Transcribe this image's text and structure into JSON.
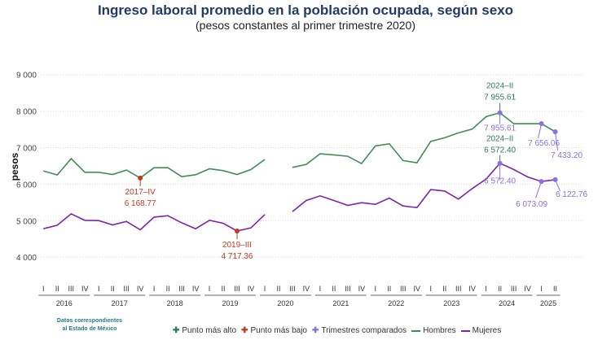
{
  "chart_data": {
    "type": "line",
    "title": "Ingreso laboral promedio en la población ocupada, según sexo",
    "subtitle": "(pesos constantes al primer trimestre 2020)",
    "ylabel": "pesos",
    "xlabel": "",
    "ylim": [
      3500,
      9000
    ],
    "yticks": [
      4000,
      5000,
      6000,
      7000,
      8000,
      9000
    ],
    "ytick_labels": [
      "4 000",
      "5 000",
      "6 000",
      "7 000",
      "8 000",
      "9 000"
    ],
    "grid": "horizontal dotted",
    "years": [
      {
        "label": "2016",
        "quarters": [
          "I",
          "II",
          "III",
          "IV"
        ]
      },
      {
        "label": "2017",
        "quarters": [
          "I",
          "II",
          "III",
          "IV"
        ]
      },
      {
        "label": "2018",
        "quarters": [
          "I",
          "II",
          "III",
          "IV"
        ]
      },
      {
        "label": "2019",
        "quarters": [
          "I",
          "II",
          "III",
          "IV"
        ]
      },
      {
        "label": "2020",
        "quarters": [
          "I",
          "II",
          "III",
          "IV"
        ]
      },
      {
        "label": "2021",
        "quarters": [
          "I",
          "II",
          "III",
          "IV"
        ]
      },
      {
        "label": "2022",
        "quarters": [
          "I",
          "II",
          "III",
          "IV"
        ]
      },
      {
        "label": "2023",
        "quarters": [
          "I",
          "II",
          "III",
          "IV"
        ]
      },
      {
        "label": "2024",
        "quarters": [
          "I",
          "II",
          "III",
          "IV"
        ]
      },
      {
        "label": "2025",
        "quarters": [
          "I",
          "II"
        ]
      }
    ],
    "series": [
      {
        "name": "Hombres",
        "color": "#3f8f55",
        "values": [
          6362,
          6251,
          6697,
          6325,
          6325,
          6266,
          6385,
          6168.77,
          6451,
          6451,
          6206,
          6258,
          6422,
          6370,
          6266,
          6400,
          6674,
          null,
          6459,
          6541,
          6830,
          6801,
          6764,
          6563,
          7046,
          7105,
          6645,
          6585,
          7172,
          7269,
          7403,
          7507,
          7848,
          7955.61,
          7655,
          7655,
          7656.06,
          7433.2
        ]
      },
      {
        "name": "Mujeres",
        "color": "#7e22b0",
        "values": [
          4780,
          4876,
          5188,
          5010,
          5003,
          4884,
          4980,
          4750,
          5099,
          5136,
          4943,
          4780,
          5010,
          4928,
          4717.36,
          4802,
          5166,
          null,
          5248,
          5553,
          5679,
          5553,
          5419,
          5493,
          5448,
          5619,
          5404,
          5359,
          5850,
          5813,
          5590,
          5880,
          6140,
          6572.4,
          6400,
          6199,
          6073.09,
          6122.76
        ]
      }
    ],
    "annotations": [
      {
        "kind": "high",
        "series": "Hombres",
        "index": 33,
        "period": "2024–II",
        "value_label": "7 955.61"
      },
      {
        "kind": "high",
        "series": "Mujeres",
        "index": 33,
        "period": "2024–II",
        "value_label": "6 572.40"
      },
      {
        "kind": "low",
        "series": "Hombres",
        "index": 7,
        "period": "2017–IV",
        "value_label": "6 168.77"
      },
      {
        "kind": "low",
        "series": "Mujeres",
        "index": 14,
        "period": "2019–III",
        "value_label": "4 717.36"
      },
      {
        "kind": "compared",
        "series": "Hombres",
        "index": 33,
        "value_label": "7 955.61"
      },
      {
        "kind": "compared",
        "series": "Hombres",
        "index": 36,
        "value_label": "7 656.06"
      },
      {
        "kind": "compared",
        "series": "Hombres",
        "index": 37,
        "value_label": "7 433.20"
      },
      {
        "kind": "compared",
        "series": "Mujeres",
        "index": 33,
        "value_label": "6 572.40"
      },
      {
        "kind": "compared",
        "series": "Mujeres",
        "index": 36,
        "value_label": "6 073.09"
      },
      {
        "kind": "compared",
        "series": "Mujeres",
        "index": 37,
        "value_label": "6 122.76"
      }
    ],
    "colors": {
      "high": "#2f7d5b",
      "low": "#c0391f",
      "compared": "#8a6ee8"
    },
    "legend": {
      "placement": "bottom",
      "items": [
        "Punto más alto",
        "Punto más bajo",
        "Trimestres comparados",
        "Hombres",
        "Mujeres"
      ]
    }
  },
  "note": {
    "line1": "Datos correspondientes",
    "line2": "al Estado de México"
  }
}
